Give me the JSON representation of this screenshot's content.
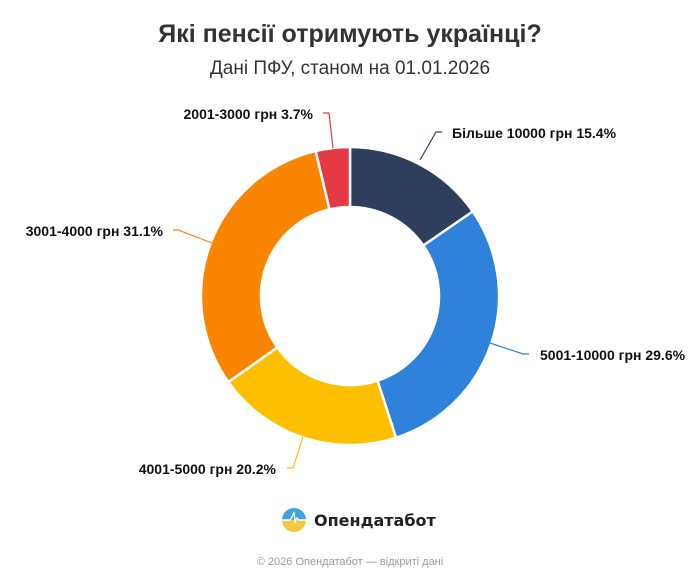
{
  "header": {
    "title": "Які пенсії отримують українці?",
    "subtitle": "Дані ПФУ, станом на 01.01.2026"
  },
  "chart_data": {
    "type": "pie",
    "subtype": "donut",
    "title": "Які пенсії отримують українці?",
    "subtitle": "Дані ПФУ, станом на 01.01.2026",
    "categories": [
      "Більше 10000 грн",
      "5001-10000 грн",
      "4001-5000 грн",
      "3001-4000 грн",
      "2001-3000 грн"
    ],
    "values": [
      15.4,
      29.6,
      20.2,
      31.1,
      3.7
    ],
    "unit": "%",
    "colors": [
      "#2e3f5e",
      "#2e82d9",
      "#fdbf00",
      "#fb8500",
      "#e63946"
    ],
    "labels": [
      "Більше 10000 грн 15.4%",
      "5001-10000 грн 29.6%",
      "4001-5000 грн 20.2%",
      "3001-4000 грн 31.1%",
      "2001-3000 грн 3.7%"
    ],
    "start_angle": 0,
    "direction": "clockwise",
    "legend": "none (data labels with leader lines)"
  },
  "branding": {
    "name": "Опендатабот",
    "logo_icon": "opendatabot-logo-icon"
  },
  "footer": {
    "text": "© 2026 Опендатабот — відкриті дані"
  }
}
